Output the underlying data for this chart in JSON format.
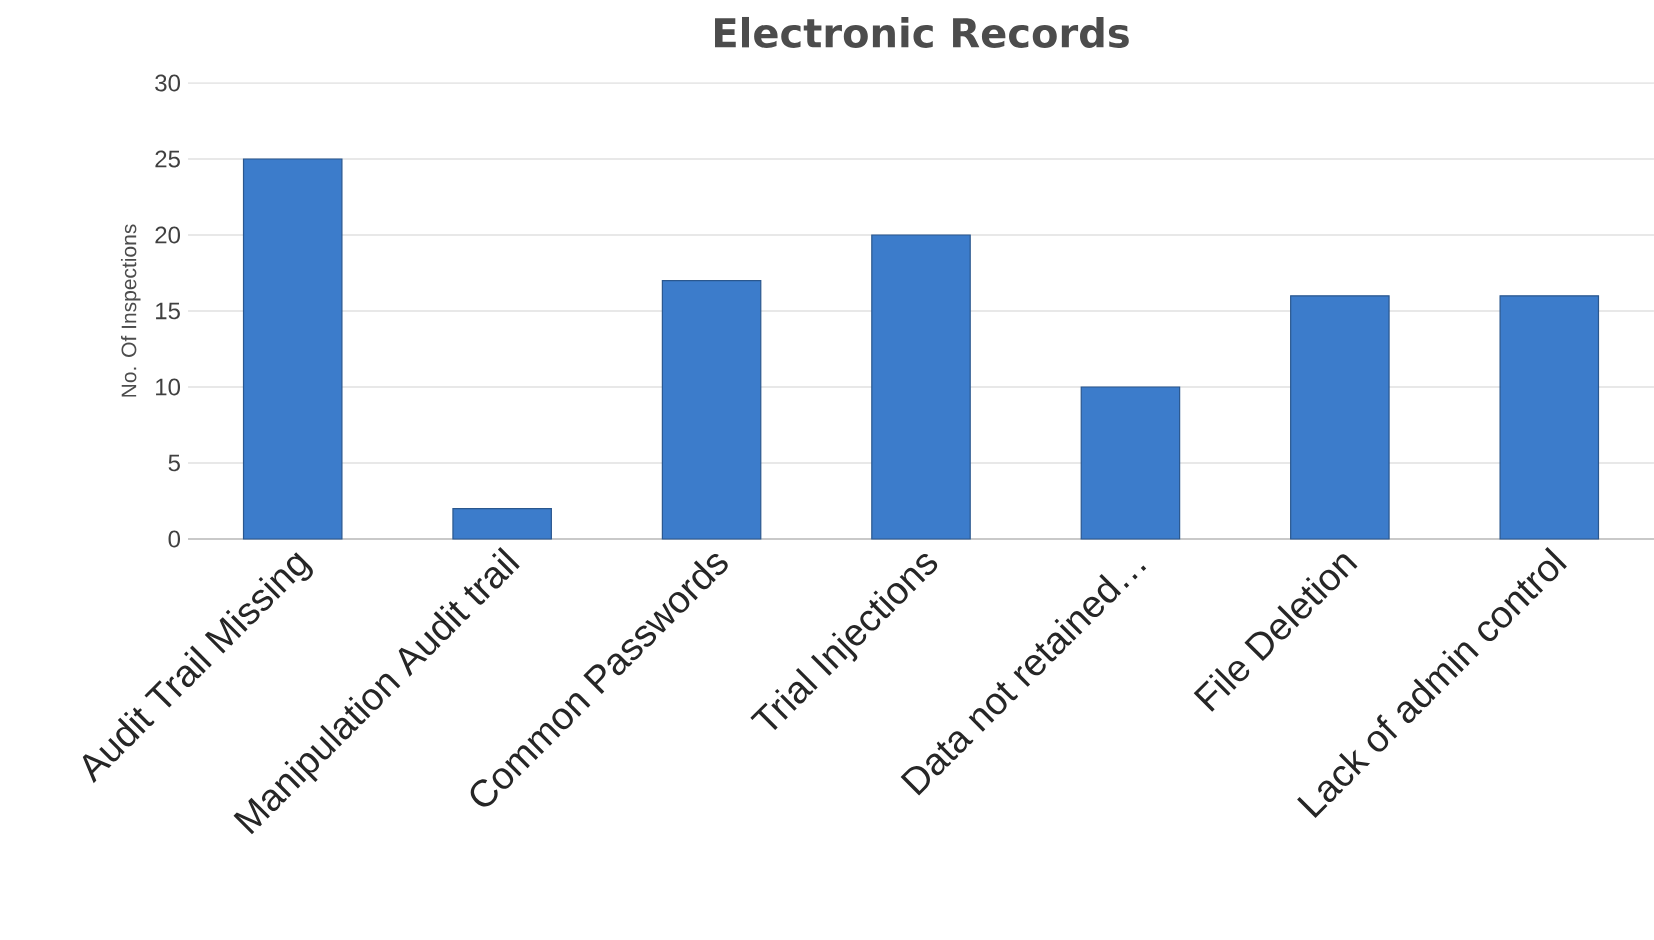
{
  "chart_data": {
    "type": "bar",
    "title": "Electronic Records",
    "ylabel": "No. Of Inspections",
    "categories": [
      "Audit Trail Missing",
      "Manipulation Audit trail",
      "Common Passwords",
      "Trial Injections",
      "Data not retained…",
      "File Deletion",
      "Lack of admin control"
    ],
    "values": [
      25,
      2,
      17,
      20,
      10,
      16,
      16
    ],
    "color": "#3c7ccb",
    "ylim": [
      0,
      30
    ],
    "yticks": [
      0,
      5,
      10,
      15,
      20,
      25,
      30
    ],
    "grid": "y"
  }
}
